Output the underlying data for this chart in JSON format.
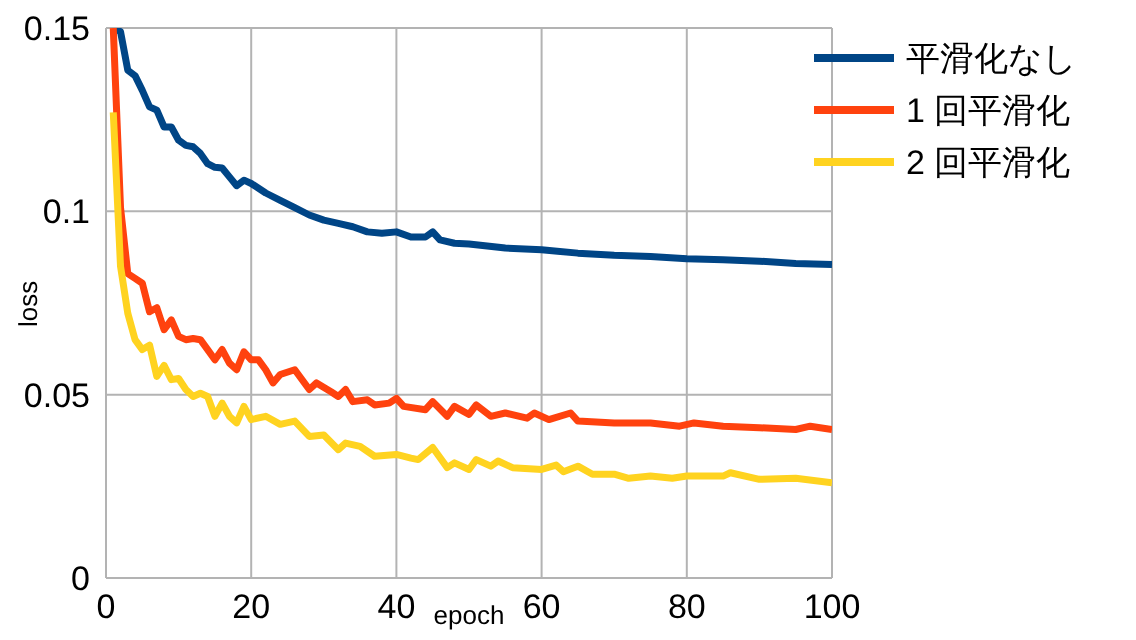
{
  "chart_data": {
    "type": "line",
    "xlabel": "epoch",
    "ylabel": "loss",
    "xlim": [
      0,
      100
    ],
    "xticks": [
      0,
      20,
      40,
      60,
      80,
      100
    ],
    "ylim": [
      0,
      0.15
    ],
    "yticks": [
      0,
      0.05,
      0.1,
      0.15
    ],
    "grid": true,
    "legend": "top right",
    "marker": "none",
    "line_style": "solid",
    "series": [
      {
        "name": "平滑化なし",
        "color": "#004586",
        "x": [
          1,
          2,
          3,
          4,
          5,
          6,
          7,
          8,
          9,
          10,
          11,
          12,
          13,
          14,
          15,
          16,
          17,
          18,
          19,
          20,
          22,
          24,
          26,
          28,
          30,
          32,
          34,
          36,
          38,
          40,
          42,
          44,
          45,
          46,
          48,
          50,
          55,
          60,
          65,
          70,
          75,
          80,
          85,
          90,
          95,
          100
        ],
        "values": [
          0.15,
          0.149,
          0.1385,
          0.137,
          0.133,
          0.1285,
          0.1276,
          0.123,
          0.123,
          0.1194,
          0.118,
          0.1176,
          0.1158,
          0.113,
          0.112,
          0.1118,
          0.1094,
          0.107,
          0.1085,
          0.1076,
          0.105,
          0.103,
          0.101,
          0.099,
          0.0976,
          0.0967,
          0.0958,
          0.0944,
          0.094,
          0.0944,
          0.093,
          0.093,
          0.0944,
          0.0922,
          0.0913,
          0.0911,
          0.09,
          0.0895,
          0.0886,
          0.088,
          0.0877,
          0.0871,
          0.0868,
          0.0864,
          0.0858,
          0.0855
        ]
      },
      {
        "name": "1 回平滑化",
        "color": "#ff420e",
        "x": [
          1,
          2,
          3,
          4,
          5,
          6,
          7,
          8,
          9,
          10,
          11,
          12,
          13,
          14,
          15,
          16,
          17,
          18,
          19,
          20,
          21,
          22,
          23,
          24,
          26,
          28,
          29,
          31,
          32,
          33,
          34,
          36,
          37,
          39,
          40,
          41,
          44,
          45,
          47,
          48,
          50,
          51,
          53,
          55,
          58,
          59,
          61,
          64,
          65,
          70,
          75,
          79,
          81,
          85,
          90,
          95,
          97,
          100
        ],
        "values": [
          0.15,
          0.101,
          0.083,
          0.0817,
          0.0804,
          0.0726,
          0.0737,
          0.0677,
          0.0704,
          0.0659,
          0.065,
          0.0653,
          0.065,
          0.0623,
          0.0595,
          0.0623,
          0.0586,
          0.0568,
          0.0617,
          0.0595,
          0.0595,
          0.0568,
          0.0532,
          0.0555,
          0.0568,
          0.0514,
          0.0532,
          0.0508,
          0.0495,
          0.0514,
          0.0481,
          0.0486,
          0.0472,
          0.0477,
          0.049,
          0.0468,
          0.0459,
          0.0481,
          0.0441,
          0.0468,
          0.0446,
          0.0472,
          0.0441,
          0.045,
          0.0436,
          0.045,
          0.0432,
          0.045,
          0.0428,
          0.0423,
          0.0423,
          0.0414,
          0.0423,
          0.0414,
          0.041,
          0.0405,
          0.0414,
          0.0405
        ]
      },
      {
        "name": "2 回平滑化",
        "color": "#ffd320",
        "x": [
          1,
          2,
          3,
          4,
          5,
          6,
          7,
          8,
          9,
          10,
          11,
          12,
          13,
          14,
          15,
          16,
          17,
          18,
          19,
          20,
          22,
          24,
          26,
          28,
          30,
          32,
          33,
          35,
          37,
          40,
          42,
          43,
          45,
          47,
          48,
          50,
          51,
          53,
          54,
          56,
          60,
          62,
          63,
          65,
          67,
          70,
          72,
          75,
          78,
          80,
          85,
          86,
          90,
          95,
          100
        ],
        "values": [
          0.127,
          0.085,
          0.0722,
          0.065,
          0.0623,
          0.0635,
          0.055,
          0.058,
          0.0541,
          0.0544,
          0.0514,
          0.0495,
          0.0504,
          0.0495,
          0.0441,
          0.0477,
          0.0441,
          0.0423,
          0.0468,
          0.0432,
          0.0441,
          0.0419,
          0.0428,
          0.0386,
          0.039,
          0.035,
          0.0368,
          0.0359,
          0.0332,
          0.0337,
          0.0327,
          0.0323,
          0.0356,
          0.0301,
          0.0314,
          0.0296,
          0.0323,
          0.0305,
          0.0319,
          0.0301,
          0.0296,
          0.0308,
          0.029,
          0.0305,
          0.0283,
          0.0283,
          0.0272,
          0.0278,
          0.0272,
          0.0278,
          0.0278,
          0.0287,
          0.0269,
          0.0272,
          0.026
        ]
      }
    ]
  }
}
